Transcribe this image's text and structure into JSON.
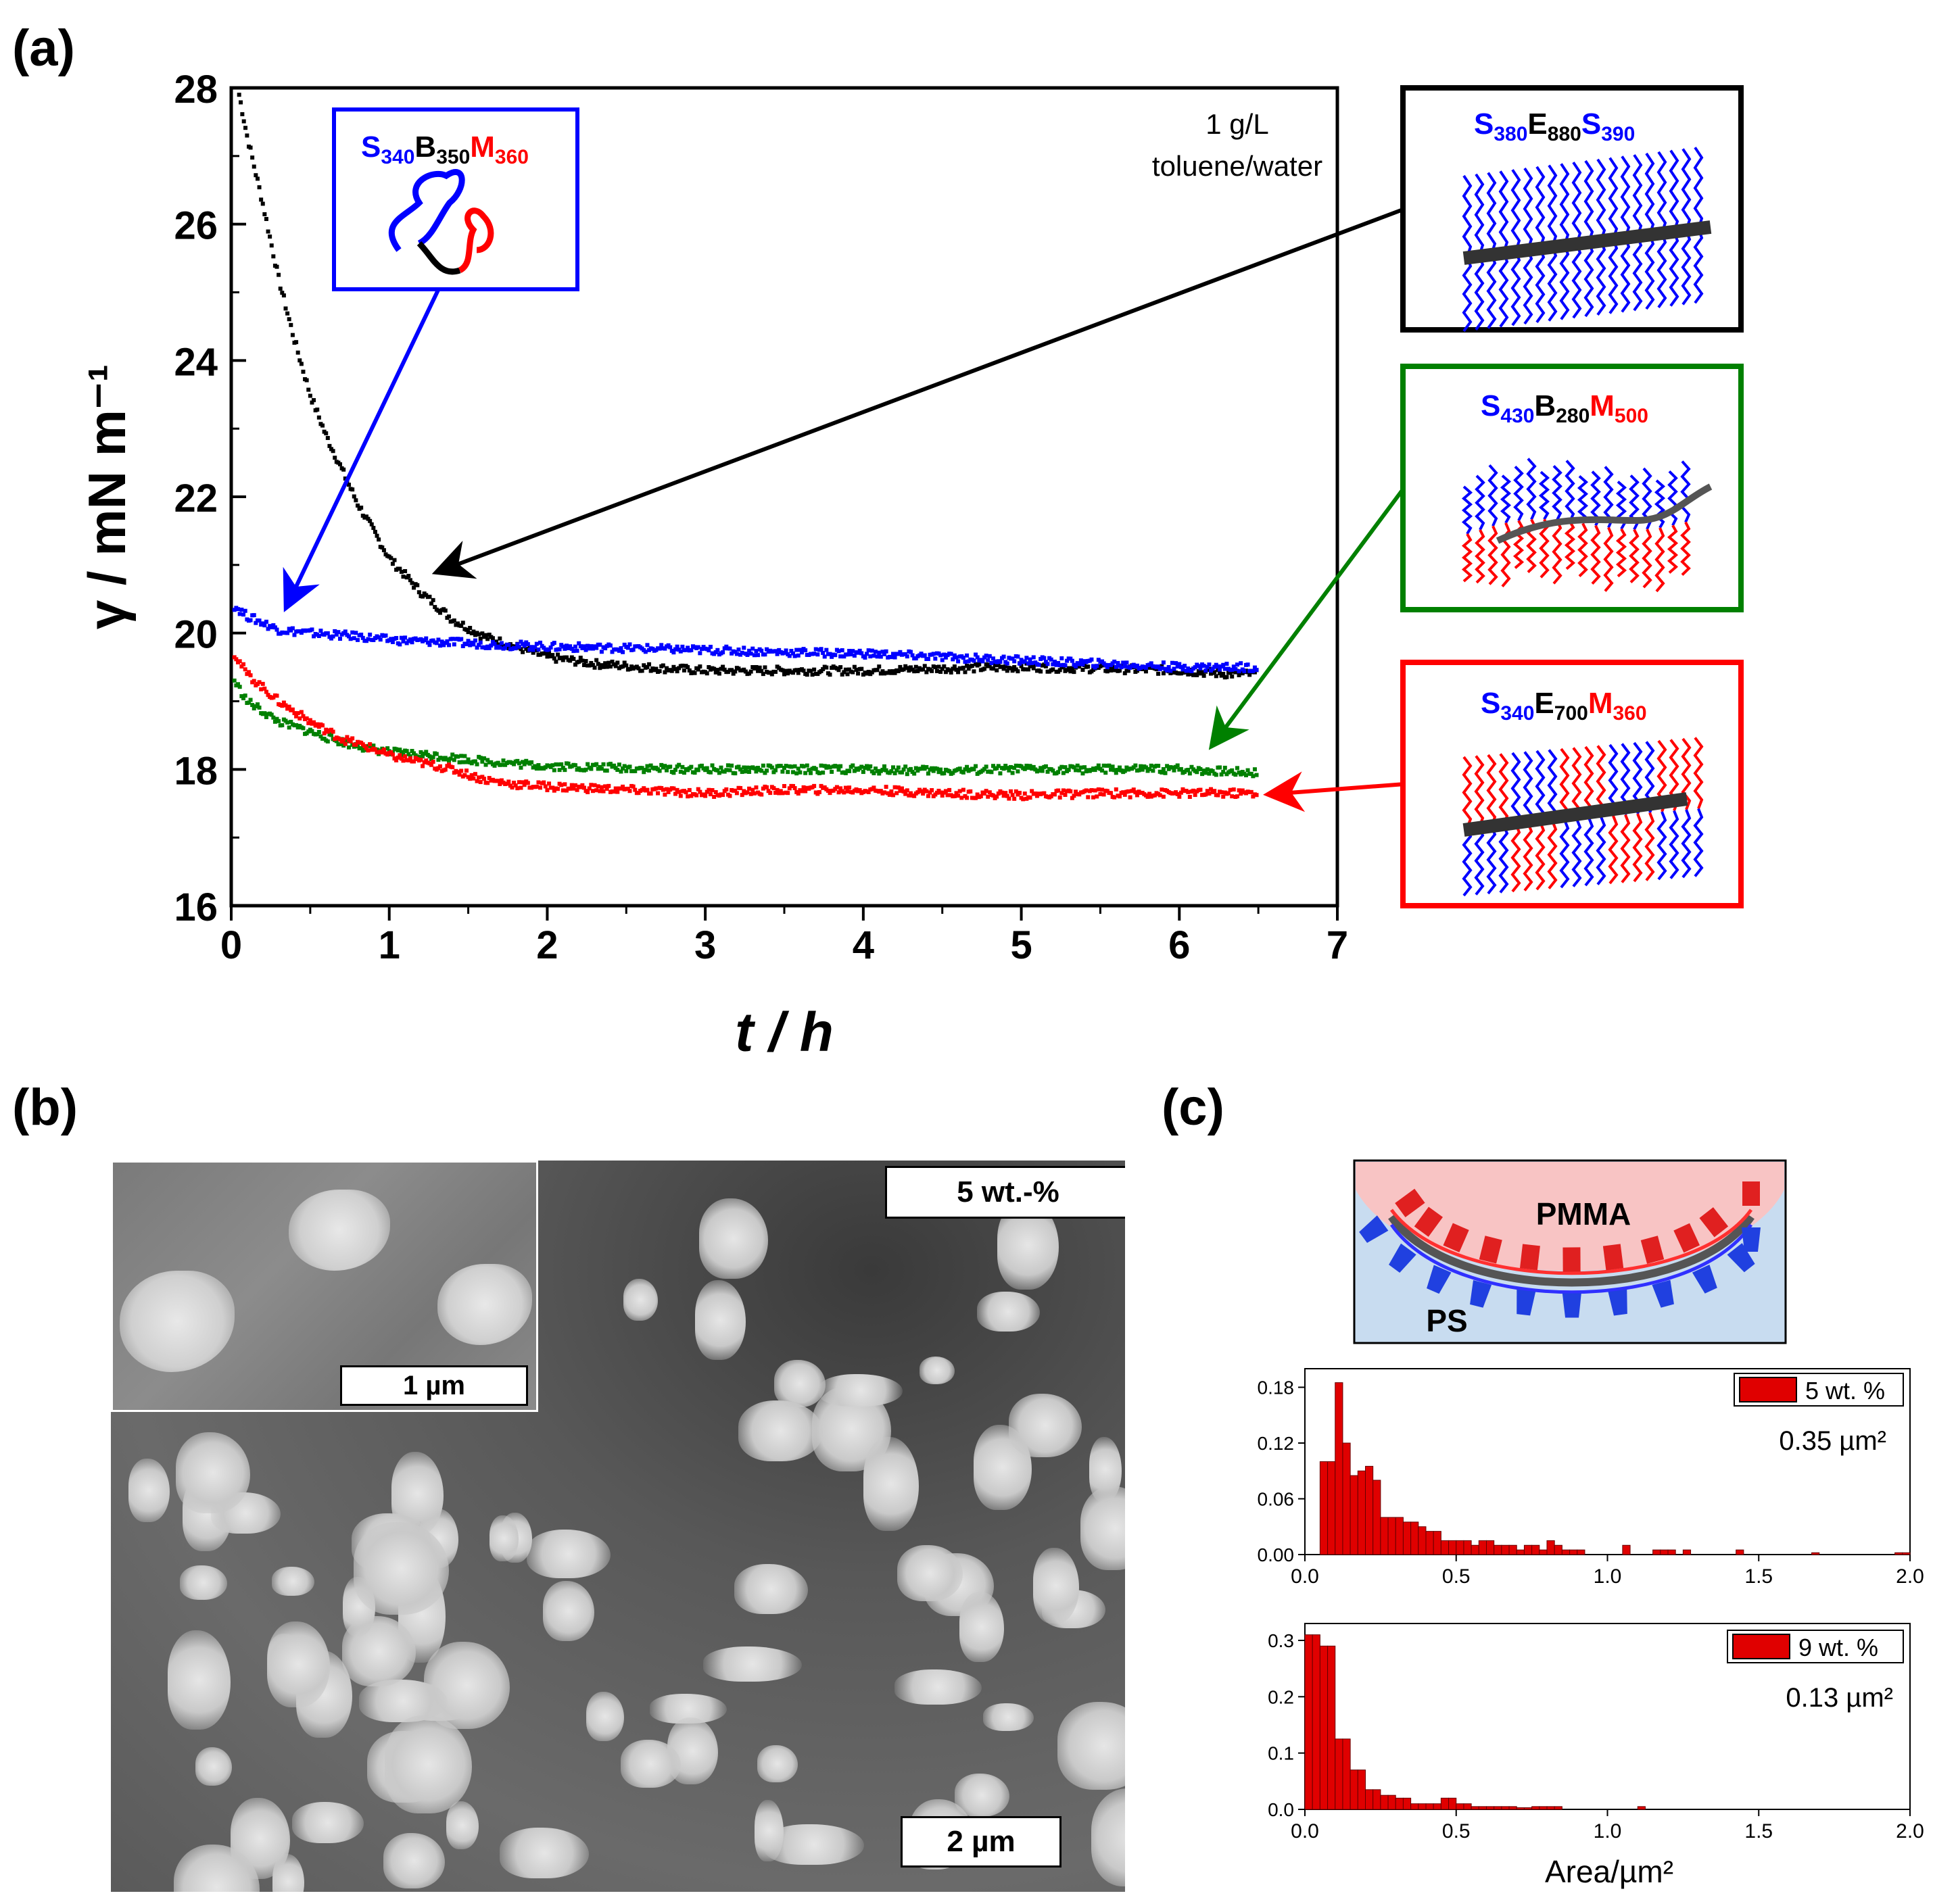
{
  "panels": {
    "a": "(a)",
    "b": "(b)",
    "c": "(c)"
  },
  "chart_data": [
    {
      "type": "scatter",
      "title": "",
      "xlabel": "t / h",
      "ylabel": "γ / mN m⁻¹",
      "xlim": [
        0,
        7
      ],
      "ylim": [
        16,
        28
      ],
      "x_ticks": [
        0,
        1,
        2,
        3,
        4,
        5,
        6,
        7
      ],
      "y_ticks": [
        16,
        18,
        20,
        22,
        24,
        26,
        28
      ],
      "annotation": [
        "1 g/L",
        "toluene/water"
      ],
      "series": [
        {
          "name": "S380E880S390",
          "color": "#000000",
          "x": [
            0.05,
            0.1,
            0.2,
            0.3,
            0.4,
            0.5,
            0.6,
            0.7,
            0.8,
            0.9,
            1.0,
            1.2,
            1.4,
            1.6,
            1.8,
            2.0,
            2.3,
            2.6,
            3.0,
            3.5,
            4.0,
            4.5,
            5.0,
            5.5,
            6.0,
            6.3,
            6.5
          ],
          "y": [
            27.9,
            27.3,
            26.3,
            25.2,
            24.3,
            23.5,
            22.9,
            22.4,
            21.9,
            21.5,
            21.1,
            20.6,
            20.2,
            19.95,
            19.8,
            19.65,
            19.55,
            19.5,
            19.45,
            19.45,
            19.45,
            19.48,
            19.5,
            19.48,
            19.45,
            19.4,
            19.4
          ]
        },
        {
          "name": "S340B350M360",
          "color": "#0000ff",
          "x": [
            0.02,
            0.1,
            0.3,
            0.5,
            0.8,
            1.0,
            1.5,
            2.0,
            2.5,
            3.0,
            3.5,
            4.0,
            4.5,
            5.0,
            5.5,
            6.0,
            6.5
          ],
          "y": [
            20.4,
            20.25,
            20.05,
            20.0,
            19.95,
            19.9,
            19.85,
            19.8,
            19.78,
            19.75,
            19.72,
            19.7,
            19.65,
            19.6,
            19.55,
            19.5,
            19.5
          ]
        },
        {
          "name": "S430B280M500",
          "color": "#008000",
          "x": [
            0.02,
            0.1,
            0.2,
            0.3,
            0.5,
            0.7,
            0.9,
            1.0,
            1.3,
            1.6,
            2.0,
            2.5,
            3.0,
            3.5,
            4.0,
            4.5,
            5.0,
            5.5,
            6.0,
            6.5
          ],
          "y": [
            19.3,
            19.0,
            18.85,
            18.7,
            18.55,
            18.4,
            18.3,
            18.25,
            18.2,
            18.12,
            18.05,
            18.02,
            18.0,
            18.0,
            18.0,
            17.98,
            18.0,
            18.0,
            18.0,
            17.95
          ]
        },
        {
          "name": "S340E700M360",
          "color": "#ff0000",
          "x": [
            0.02,
            0.1,
            0.2,
            0.3,
            0.5,
            0.7,
            0.9,
            1.0,
            1.2,
            1.4,
            1.6,
            1.8,
            2.0,
            2.5,
            3.0,
            3.5,
            4.0,
            4.5,
            5.0,
            5.5,
            6.0,
            6.5
          ],
          "y": [
            19.7,
            19.4,
            19.2,
            19.0,
            18.7,
            18.45,
            18.3,
            18.2,
            18.1,
            18.0,
            17.85,
            17.78,
            17.75,
            17.7,
            17.65,
            17.7,
            17.7,
            17.65,
            17.62,
            17.65,
            17.65,
            17.65
          ]
        }
      ]
    },
    {
      "type": "bar",
      "title": "",
      "legend": "5 wt. %",
      "mean_label": "0.35 µm²",
      "xlim": [
        0,
        2.0
      ],
      "ylim": [
        0,
        0.2
      ],
      "x_ticks": [
        "0.0",
        "0.5",
        "1.0",
        "1.5",
        "2.0"
      ],
      "y_ticks": [
        "0.00",
        "0.06",
        "0.12",
        "0.18"
      ],
      "y_tick_values": [
        0,
        0.06,
        0.12,
        0.18
      ],
      "bin_width": 0.025,
      "bin_starts": [
        0.05,
        0.075,
        0.1,
        0.125,
        0.15,
        0.175,
        0.2,
        0.225,
        0.25,
        0.275,
        0.3,
        0.325,
        0.35,
        0.375,
        0.4,
        0.425,
        0.45,
        0.475,
        0.5,
        0.525,
        0.55,
        0.575,
        0.6,
        0.625,
        0.65,
        0.675,
        0.7,
        0.725,
        0.75,
        0.775,
        0.8,
        0.825,
        0.85,
        0.875,
        0.9,
        1.05,
        1.15,
        1.175,
        1.2,
        1.25,
        1.425,
        1.675,
        1.95,
        1.975
      ],
      "values": [
        0.1,
        0.1,
        0.185,
        0.12,
        0.085,
        0.09,
        0.095,
        0.08,
        0.04,
        0.04,
        0.04,
        0.035,
        0.035,
        0.03,
        0.025,
        0.025,
        0.015,
        0.015,
        0.015,
        0.015,
        0.01,
        0.015,
        0.015,
        0.01,
        0.01,
        0.01,
        0.005,
        0.01,
        0.01,
        0.005,
        0.015,
        0.01,
        0.005,
        0.005,
        0.005,
        0.01,
        0.005,
        0.005,
        0.005,
        0.005,
        0.005,
        0.002,
        0.002,
        0.002
      ]
    },
    {
      "type": "bar",
      "title": "",
      "legend": "9 wt. %",
      "mean_label": "0.13 µm²",
      "xlabel": "Area/µm²",
      "xlim": [
        0,
        2.0
      ],
      "ylim": [
        0,
        0.33
      ],
      "x_ticks": [
        "0.0",
        "0.5",
        "1.0",
        "1.5",
        "2.0"
      ],
      "y_ticks": [
        "0.0",
        "0.1",
        "0.2",
        "0.3"
      ],
      "y_tick_values": [
        0,
        0.1,
        0.2,
        0.3
      ],
      "bin_width": 0.025,
      "bin_starts": [
        0.0,
        0.025,
        0.05,
        0.075,
        0.1,
        0.125,
        0.15,
        0.175,
        0.2,
        0.225,
        0.25,
        0.275,
        0.3,
        0.325,
        0.35,
        0.375,
        0.4,
        0.425,
        0.45,
        0.475,
        0.5,
        0.525,
        0.55,
        0.575,
        0.6,
        0.625,
        0.65,
        0.675,
        0.7,
        0.725,
        0.75,
        0.775,
        0.8,
        0.825,
        1.1
      ],
      "values": [
        0.31,
        0.31,
        0.29,
        0.29,
        0.125,
        0.125,
        0.07,
        0.07,
        0.035,
        0.035,
        0.025,
        0.025,
        0.02,
        0.02,
        0.01,
        0.01,
        0.01,
        0.01,
        0.02,
        0.02,
        0.01,
        0.01,
        0.005,
        0.005,
        0.005,
        0.005,
        0.005,
        0.005,
        0.003,
        0.003,
        0.005,
        0.005,
        0.005,
        0.005,
        0.005
      ]
    }
  ],
  "legend_boxes": [
    {
      "prefix": "S",
      "s1": "340",
      "mid": "B",
      "s2": "350",
      "end": "M",
      "s3": "360",
      "end_is_red": true,
      "mid_color": "#000000",
      "border": "#0000ff"
    },
    {
      "prefix": "S",
      "s1": "380",
      "mid": "E",
      "s2": "880",
      "end": "S",
      "s3": "390",
      "end_is_red": false,
      "mid_color": "#000000",
      "border": "#000000"
    },
    {
      "prefix": "S",
      "s1": "430",
      "mid": "B",
      "s2": "280",
      "end": "M",
      "s3": "500",
      "end_is_red": true,
      "mid_color": "#000000",
      "border": "#008000"
    },
    {
      "prefix": "S",
      "s1": "340",
      "mid": "E",
      "s2": "700",
      "end": "M",
      "s3": "360",
      "end_is_red": true,
      "mid_color": "#000000",
      "border": "#ff0000"
    }
  ],
  "tem": {
    "concentration": "5 wt.-%",
    "scale_main": "2 µm",
    "scale_inset": "1 µm"
  },
  "schematic": {
    "top_phase": "PMMA",
    "bottom_phase": "PS"
  },
  "colors": {
    "blue": "#0000ff",
    "red": "#ff0000",
    "green": "#008000",
    "black": "#000000",
    "bar": "#e00000",
    "pmma": "#f8c4c4",
    "ps": "#c8dcf0"
  }
}
